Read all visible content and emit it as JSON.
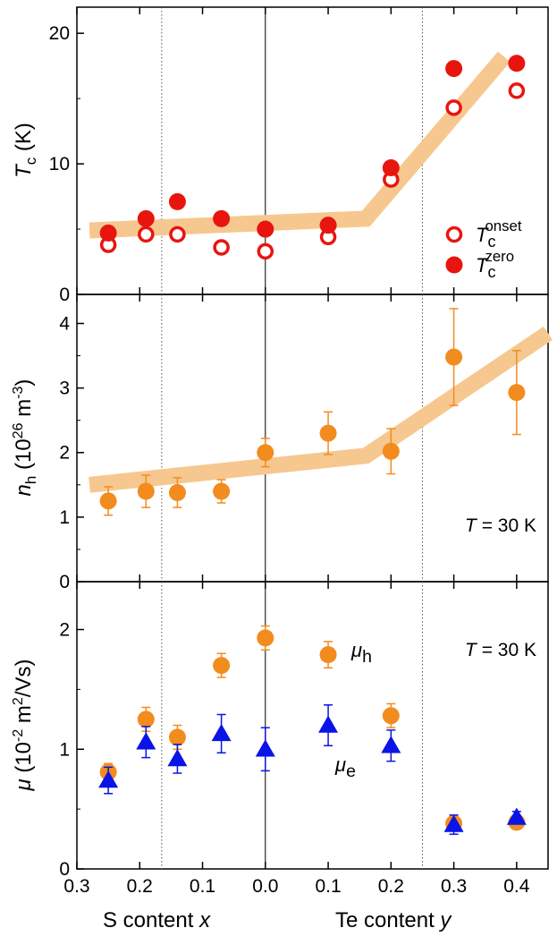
{
  "chart_data": {
    "type": "scatter",
    "x_axis": {
      "label_left": "S content x",
      "label_right": "Te content y",
      "ticks": [
        {
          "pos": -0.3,
          "label": "0.3"
        },
        {
          "pos": -0.2,
          "label": "0.2"
        },
        {
          "pos": -0.1,
          "label": "0.1"
        },
        {
          "pos": 0.0,
          "label": "0.0"
        },
        {
          "pos": 0.1,
          "label": "0.1"
        },
        {
          "pos": 0.2,
          "label": "0.2"
        },
        {
          "pos": 0.3,
          "label": "0.3"
        },
        {
          "pos": 0.4,
          "label": "0.4"
        }
      ],
      "xlim": [
        -0.3,
        0.45
      ],
      "note": "left of 0.0 is S content x (decreasing), right is Te content y"
    },
    "vertical_lines": {
      "dotted": [
        -0.165,
        0.25
      ],
      "solid": [
        0.0
      ]
    },
    "panels": [
      {
        "id": "tc",
        "ylabel": "T_c (K)",
        "ylim": [
          0,
          22
        ],
        "yticks": [
          0,
          10,
          20
        ],
        "series": [
          {
            "name": "T_c^onset",
            "marker": "open-circle",
            "color": "#e8150f",
            "points": [
              [
                -0.25,
                3.8
              ],
              [
                -0.19,
                4.6
              ],
              [
                -0.14,
                4.6
              ],
              [
                -0.07,
                3.6
              ],
              [
                0.0,
                3.3
              ],
              [
                0.1,
                4.4
              ],
              [
                0.2,
                8.8
              ],
              [
                0.3,
                14.3
              ],
              [
                0.4,
                15.6
              ]
            ]
          },
          {
            "name": "T_c^zero",
            "marker": "filled-circle",
            "color": "#e8150f",
            "points": [
              [
                -0.25,
                4.7
              ],
              [
                -0.19,
                5.8
              ],
              [
                -0.14,
                7.1
              ],
              [
                -0.07,
                5.8
              ],
              [
                0.0,
                5.0
              ],
              [
                0.1,
                5.3
              ],
              [
                0.2,
                9.7
              ],
              [
                0.3,
                17.3
              ],
              [
                0.4,
                17.7
              ]
            ]
          }
        ],
        "guide": {
          "color": "#f6c88f",
          "points": [
            [
              -0.28,
              4.9
            ],
            [
              0.16,
              5.8
            ],
            [
              0.38,
              18.2
            ]
          ]
        },
        "legend": [
          {
            "marker": "open-circle",
            "label_main": "T",
            "label_sub": "c",
            "label_sup": "onset"
          },
          {
            "marker": "filled-circle",
            "label_main": "T",
            "label_sub": "c",
            "label_sup": "zero"
          }
        ]
      },
      {
        "id": "nh",
        "ylabel": "n_h (10^26 m^-3)",
        "ylim": [
          0,
          4.45
        ],
        "yticks": [
          0,
          1,
          2,
          3,
          4
        ],
        "annotation": "T = 30 K",
        "series": [
          {
            "name": "n_h",
            "marker": "filled-circle",
            "color": "#f28c1e",
            "points": [
              {
                "x": -0.25,
                "y": 1.25,
                "err": 0.22
              },
              {
                "x": -0.19,
                "y": 1.4,
                "err": 0.25
              },
              {
                "x": -0.14,
                "y": 1.38,
                "err": 0.23
              },
              {
                "x": -0.07,
                "y": 1.4,
                "err": 0.18
              },
              {
                "x": 0.0,
                "y": 2.0,
                "err": 0.22
              },
              {
                "x": 0.1,
                "y": 2.3,
                "err": 0.33
              },
              {
                "x": 0.2,
                "y": 2.02,
                "err": 0.35
              },
              {
                "x": 0.3,
                "y": 3.48,
                "err": 0.75
              },
              {
                "x": 0.4,
                "y": 2.93,
                "err": 0.65
              }
            ]
          }
        ],
        "guide": {
          "color": "#f6c88f",
          "points": [
            [
              -0.28,
              1.5
            ],
            [
              0.16,
              1.95
            ],
            [
              0.45,
              3.85
            ]
          ]
        }
      },
      {
        "id": "mu",
        "ylabel": "μ (10^-2 m^2/Vs)",
        "ylim": [
          0,
          2.4
        ],
        "yticks": [
          0,
          1,
          2
        ],
        "annotation": "T = 30 K",
        "series": [
          {
            "name": "μh",
            "marker": "filled-circle",
            "color": "#f28c1e",
            "points": [
              {
                "x": -0.25,
                "y": 0.81,
                "err": 0.07
              },
              {
                "x": -0.19,
                "y": 1.25,
                "err": 0.1
              },
              {
                "x": -0.14,
                "y": 1.1,
                "err": 0.1
              },
              {
                "x": -0.07,
                "y": 1.7,
                "err": 0.1
              },
              {
                "x": 0.0,
                "y": 1.93,
                "err": 0.1
              },
              {
                "x": 0.1,
                "y": 1.79,
                "err": 0.11
              },
              {
                "x": 0.2,
                "y": 1.28,
                "err": 0.1
              },
              {
                "x": 0.3,
                "y": 0.38,
                "err": 0.05
              },
              {
                "x": 0.4,
                "y": 0.39,
                "err": 0.03
              }
            ]
          },
          {
            "name": "μe",
            "marker": "filled-triangle",
            "color": "#0a14e6",
            "points": [
              {
                "x": -0.25,
                "y": 0.74,
                "err": 0.11
              },
              {
                "x": -0.19,
                "y": 1.06,
                "err": 0.13
              },
              {
                "x": -0.14,
                "y": 0.92,
                "err": 0.12
              },
              {
                "x": -0.07,
                "y": 1.13,
                "err": 0.16
              },
              {
                "x": 0.0,
                "y": 1.0,
                "err": 0.18
              },
              {
                "x": 0.1,
                "y": 1.2,
                "err": 0.17
              },
              {
                "x": 0.2,
                "y": 1.03,
                "err": 0.13
              },
              {
                "x": 0.3,
                "y": 0.37,
                "err": 0.08
              },
              {
                "x": 0.4,
                "y": 0.43,
                "err": 0.05
              }
            ]
          }
        ],
        "labels": [
          {
            "series": "μh",
            "main": "μ",
            "sub": "h"
          },
          {
            "series": "μe",
            "main": "μ",
            "sub": "e"
          }
        ]
      }
    ]
  }
}
